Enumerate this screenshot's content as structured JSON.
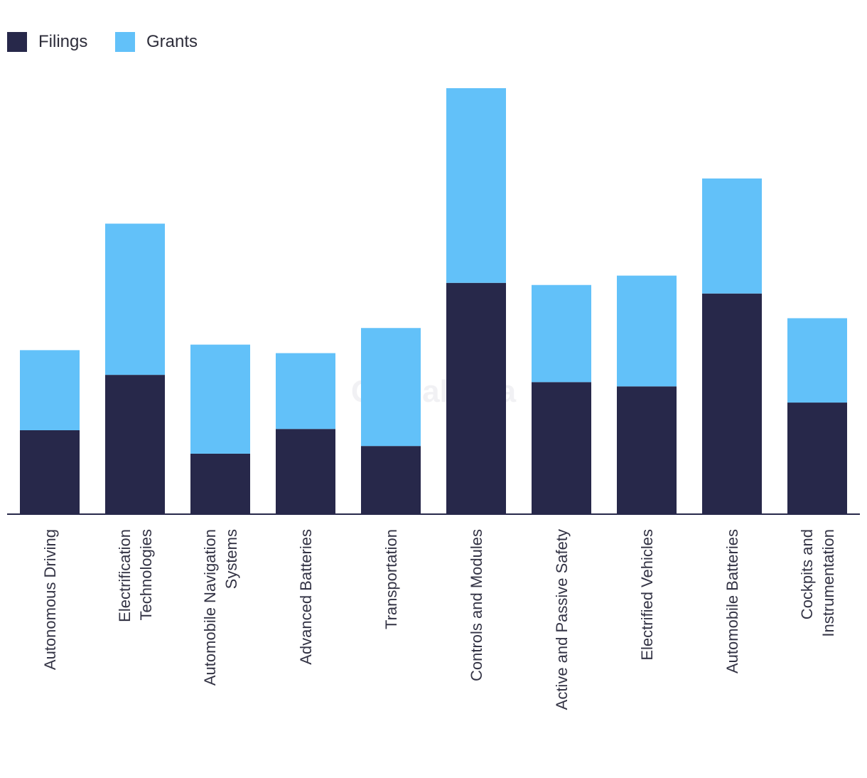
{
  "chart_data": {
    "type": "bar",
    "stacked": true,
    "title": "",
    "xlabel": "",
    "ylabel": "",
    "ylim": [
      0,
      100
    ],
    "grid": false,
    "legend_position": "top-left",
    "categories": [
      [
        "Autonomous Driving"
      ],
      [
        "Electrification",
        "Technologies"
      ],
      [
        "Automobile Navigation",
        "Systems"
      ],
      [
        "Advanced Batteries"
      ],
      [
        "Transportation"
      ],
      [
        "Controls and Modules"
      ],
      [
        "Active and Passive Safety"
      ],
      [
        "Electrified Vehicles"
      ],
      [
        "Automobile Batteries"
      ],
      [
        "Cockpits and",
        "Instrumentation"
      ]
    ],
    "series": [
      {
        "name": "Filings",
        "color": "#27284a",
        "values": [
          19.7,
          32.7,
          14.2,
          20.0,
          16.0,
          54.3,
          31.0,
          30.0,
          51.8,
          26.2
        ]
      },
      {
        "name": "Grants",
        "color": "#62c1f9",
        "values": [
          18.8,
          35.5,
          25.6,
          17.8,
          27.7,
          45.7,
          22.8,
          26.0,
          27.0,
          19.8
        ]
      }
    ]
  },
  "watermark": "GlobalData"
}
